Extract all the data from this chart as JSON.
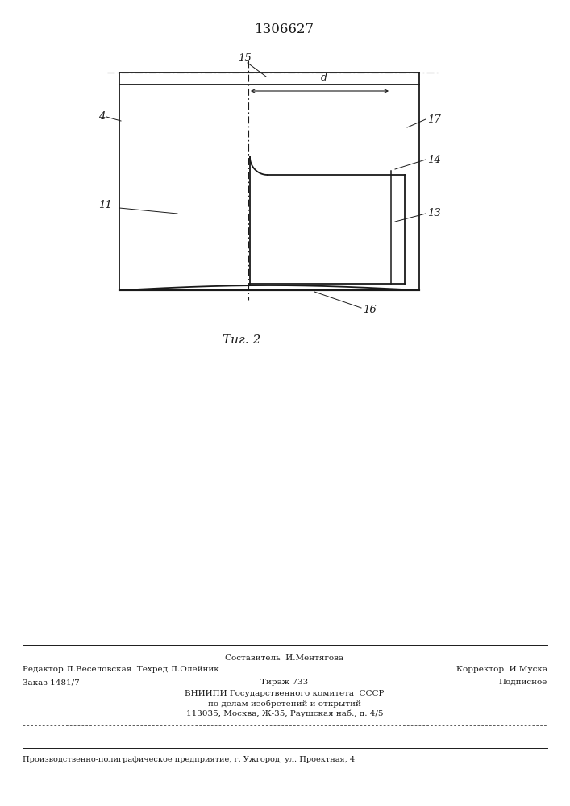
{
  "patent_number": "1306627",
  "fig_label": "Τиг. 2",
  "bg_color": "#ffffff",
  "line_color": "#1a1a1a",
  "footer_line1_center": "Составитель  И.Ментягова",
  "footer_line1_left": "Редактор Л.Веселовская  Техред Л.Олейник",
  "footer_line1_right": "Корректор  И.Муска",
  "footer_order": "Заказ 1481/7",
  "footer_tirazh": "Тираж 733",
  "footer_podpisnoe": "Подписное",
  "footer_vniip1": "ВНИИПИ Государственного комитета  СССР",
  "footer_vniip2": "по делам изобретений и открытий",
  "footer_vniip3": "113035, Москва, Ж-35, Раушская наб., д. 4/5",
  "footer_bottom": "Производственно-полиграфическое предприятие, г. Ужгород, ул. Проектная, 4"
}
